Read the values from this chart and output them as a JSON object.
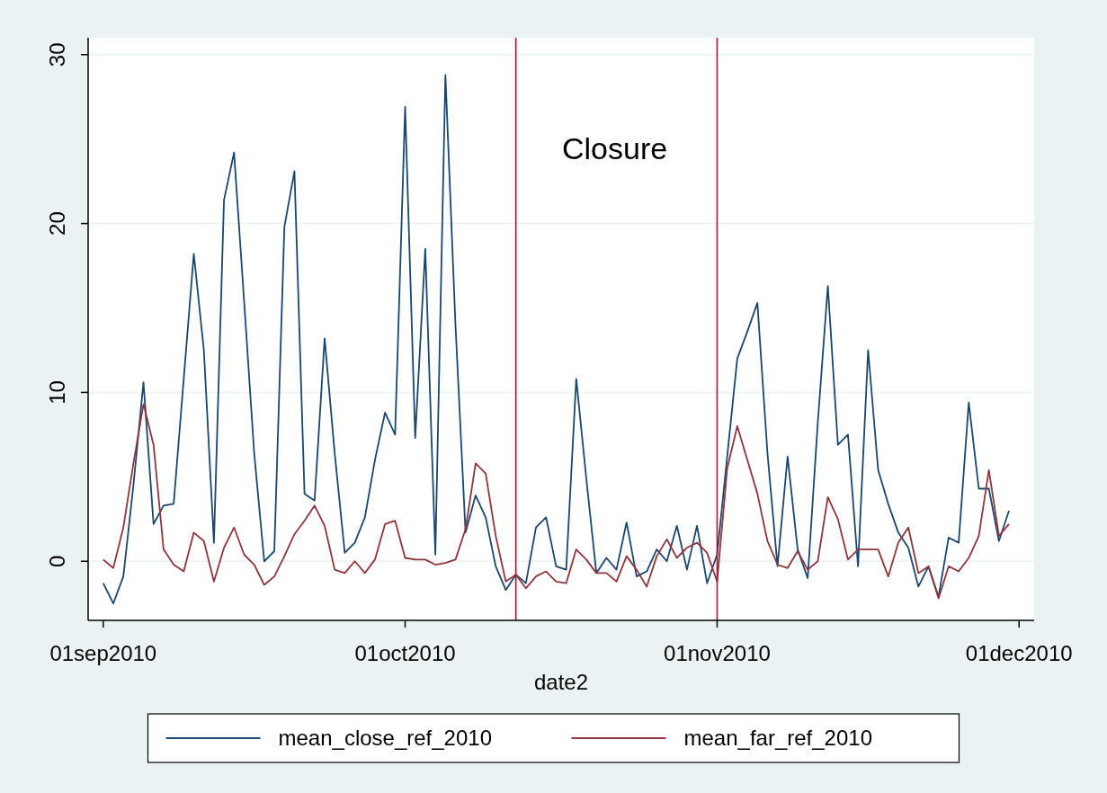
{
  "chart_data": {
    "type": "line",
    "xlabel": "date2",
    "legend": "bottom",
    "grid": "y",
    "line_style": "solid",
    "marker": "none",
    "x": [
      "2010-09-01",
      "2010-09-02",
      "2010-09-03",
      "2010-09-04",
      "2010-09-05",
      "2010-09-06",
      "2010-09-07",
      "2010-09-08",
      "2010-09-09",
      "2010-09-10",
      "2010-09-11",
      "2010-09-12",
      "2010-09-13",
      "2010-09-14",
      "2010-09-15",
      "2010-09-16",
      "2010-09-17",
      "2010-09-18",
      "2010-09-19",
      "2010-09-20",
      "2010-09-21",
      "2010-09-22",
      "2010-09-23",
      "2010-09-24",
      "2010-09-25",
      "2010-09-26",
      "2010-09-27",
      "2010-09-28",
      "2010-09-29",
      "2010-09-30",
      "2010-10-01",
      "2010-10-02",
      "2010-10-03",
      "2010-10-04",
      "2010-10-05",
      "2010-10-06",
      "2010-10-07",
      "2010-10-08",
      "2010-10-09",
      "2010-10-10",
      "2010-10-11",
      "2010-10-12",
      "2010-10-13",
      "2010-10-14",
      "2010-10-15",
      "2010-10-16",
      "2010-10-17",
      "2010-10-18",
      "2010-10-19",
      "2010-10-20",
      "2010-10-21",
      "2010-10-22",
      "2010-10-23",
      "2010-10-24",
      "2010-10-25",
      "2010-10-26",
      "2010-10-27",
      "2010-10-28",
      "2010-10-29",
      "2010-10-30",
      "2010-10-31",
      "2010-11-01",
      "2010-11-02",
      "2010-11-03",
      "2010-11-04",
      "2010-11-05",
      "2010-11-06",
      "2010-11-07",
      "2010-11-08",
      "2010-11-09",
      "2010-11-10",
      "2010-11-11",
      "2010-11-12",
      "2010-11-13",
      "2010-11-14",
      "2010-11-15",
      "2010-11-16",
      "2010-11-17",
      "2010-11-18",
      "2010-11-19",
      "2010-11-20",
      "2010-11-21",
      "2010-11-22",
      "2010-11-23",
      "2010-11-24",
      "2010-11-25",
      "2010-11-26",
      "2010-11-27",
      "2010-11-28",
      "2010-11-29",
      "2010-11-30"
    ],
    "series": [
      {
        "name": "mean_close_ref_2010",
        "color": "#1a476f",
        "values": [
          -1.3,
          -2.5,
          -0.9,
          4.5,
          10.6,
          2.2,
          3.3,
          3.4,
          10.8,
          18.2,
          12.5,
          1.1,
          21.4,
          24.2,
          15.4,
          6.4,
          0,
          0.6,
          19.8,
          23.1,
          4.0,
          3.6,
          13.2,
          6.4,
          0.5,
          1.1,
          2.6,
          6.0,
          8.8,
          7.5,
          26.9,
          7.3,
          18.5,
          0.4,
          28.8,
          14.0,
          1.7,
          3.9,
          2.6,
          -0.3,
          -1.7,
          -0.8,
          -1.3,
          2.0,
          2.6,
          -0.3,
          -0.5,
          10.8,
          4.9,
          -0.7,
          0.2,
          -0.5,
          2.3,
          -0.9,
          -0.6,
          0.7,
          0,
          2.1,
          -0.5,
          2.1,
          -1.3,
          0.4,
          6.2,
          12.0,
          13.6,
          15.3,
          6.4,
          -0.3,
          6.2,
          0.7,
          -1.0,
          8.2,
          16.3,
          6.9,
          7.5,
          -0.3,
          12.5,
          5.4,
          3.4,
          1.7,
          0.8,
          -1.5,
          -0.3,
          -2.1,
          1.4,
          1.1,
          9.4,
          4.3,
          4.3,
          1.2,
          3.0
        ]
      },
      {
        "name": "mean_far_ref_2010",
        "color": "#90353b",
        "values": [
          0.1,
          -0.4,
          2.0,
          5.8,
          9.3,
          6.9,
          0.7,
          -0.2,
          -0.6,
          1.7,
          1.2,
          -1.2,
          0.8,
          2.0,
          0.4,
          -0.2,
          -1.4,
          -0.9,
          0.3,
          1.6,
          2.4,
          3.3,
          2.1,
          -0.5,
          -0.7,
          0,
          -0.7,
          0.1,
          2.2,
          2.4,
          0.2,
          0.1,
          0.1,
          -0.2,
          -0.1,
          0.1,
          1.9,
          5.8,
          5.2,
          1.5,
          -1.2,
          -0.8,
          -1.6,
          -0.9,
          -0.6,
          -1.2,
          -1.3,
          0.7,
          0.1,
          -0.7,
          -0.7,
          -1.2,
          0.3,
          -0.5,
          -1.5,
          0.3,
          1.3,
          0.2,
          0.8,
          1.1,
          0.5,
          -1.2,
          5.5,
          8.0,
          6.0,
          4.0,
          1.2,
          -0.2,
          -0.4,
          0.6,
          -0.5,
          0,
          3.8,
          2.5,
          0.1,
          0.7,
          0.7,
          0.7,
          -0.9,
          1.1,
          2.0,
          -0.7,
          -0.3,
          -2.2,
          -0.3,
          -0.6,
          0.2,
          1.5,
          5.4,
          1.5,
          2.2
        ]
      }
    ],
    "xlim": [
      "2010-08-30T12:00",
      "2010-12-02T12:00"
    ],
    "xticks": [
      {
        "value": "2010-09-01",
        "label": "01sep2010"
      },
      {
        "value": "2010-10-01",
        "label": "01oct2010"
      },
      {
        "value": "2010-11-01",
        "label": "01nov2010"
      },
      {
        "value": "2010-12-01",
        "label": "01dec2010"
      }
    ],
    "ylim": [
      -3.5,
      31
    ],
    "yticks": [
      0,
      10,
      20,
      30
    ],
    "ref_lines": [
      {
        "axis": "x",
        "value": "2010-10-12",
        "color": "#c10534"
      },
      {
        "axis": "x",
        "value": "2010-11-01",
        "color": "#c10534"
      }
    ],
    "annotations": [
      "Closure"
    ]
  }
}
